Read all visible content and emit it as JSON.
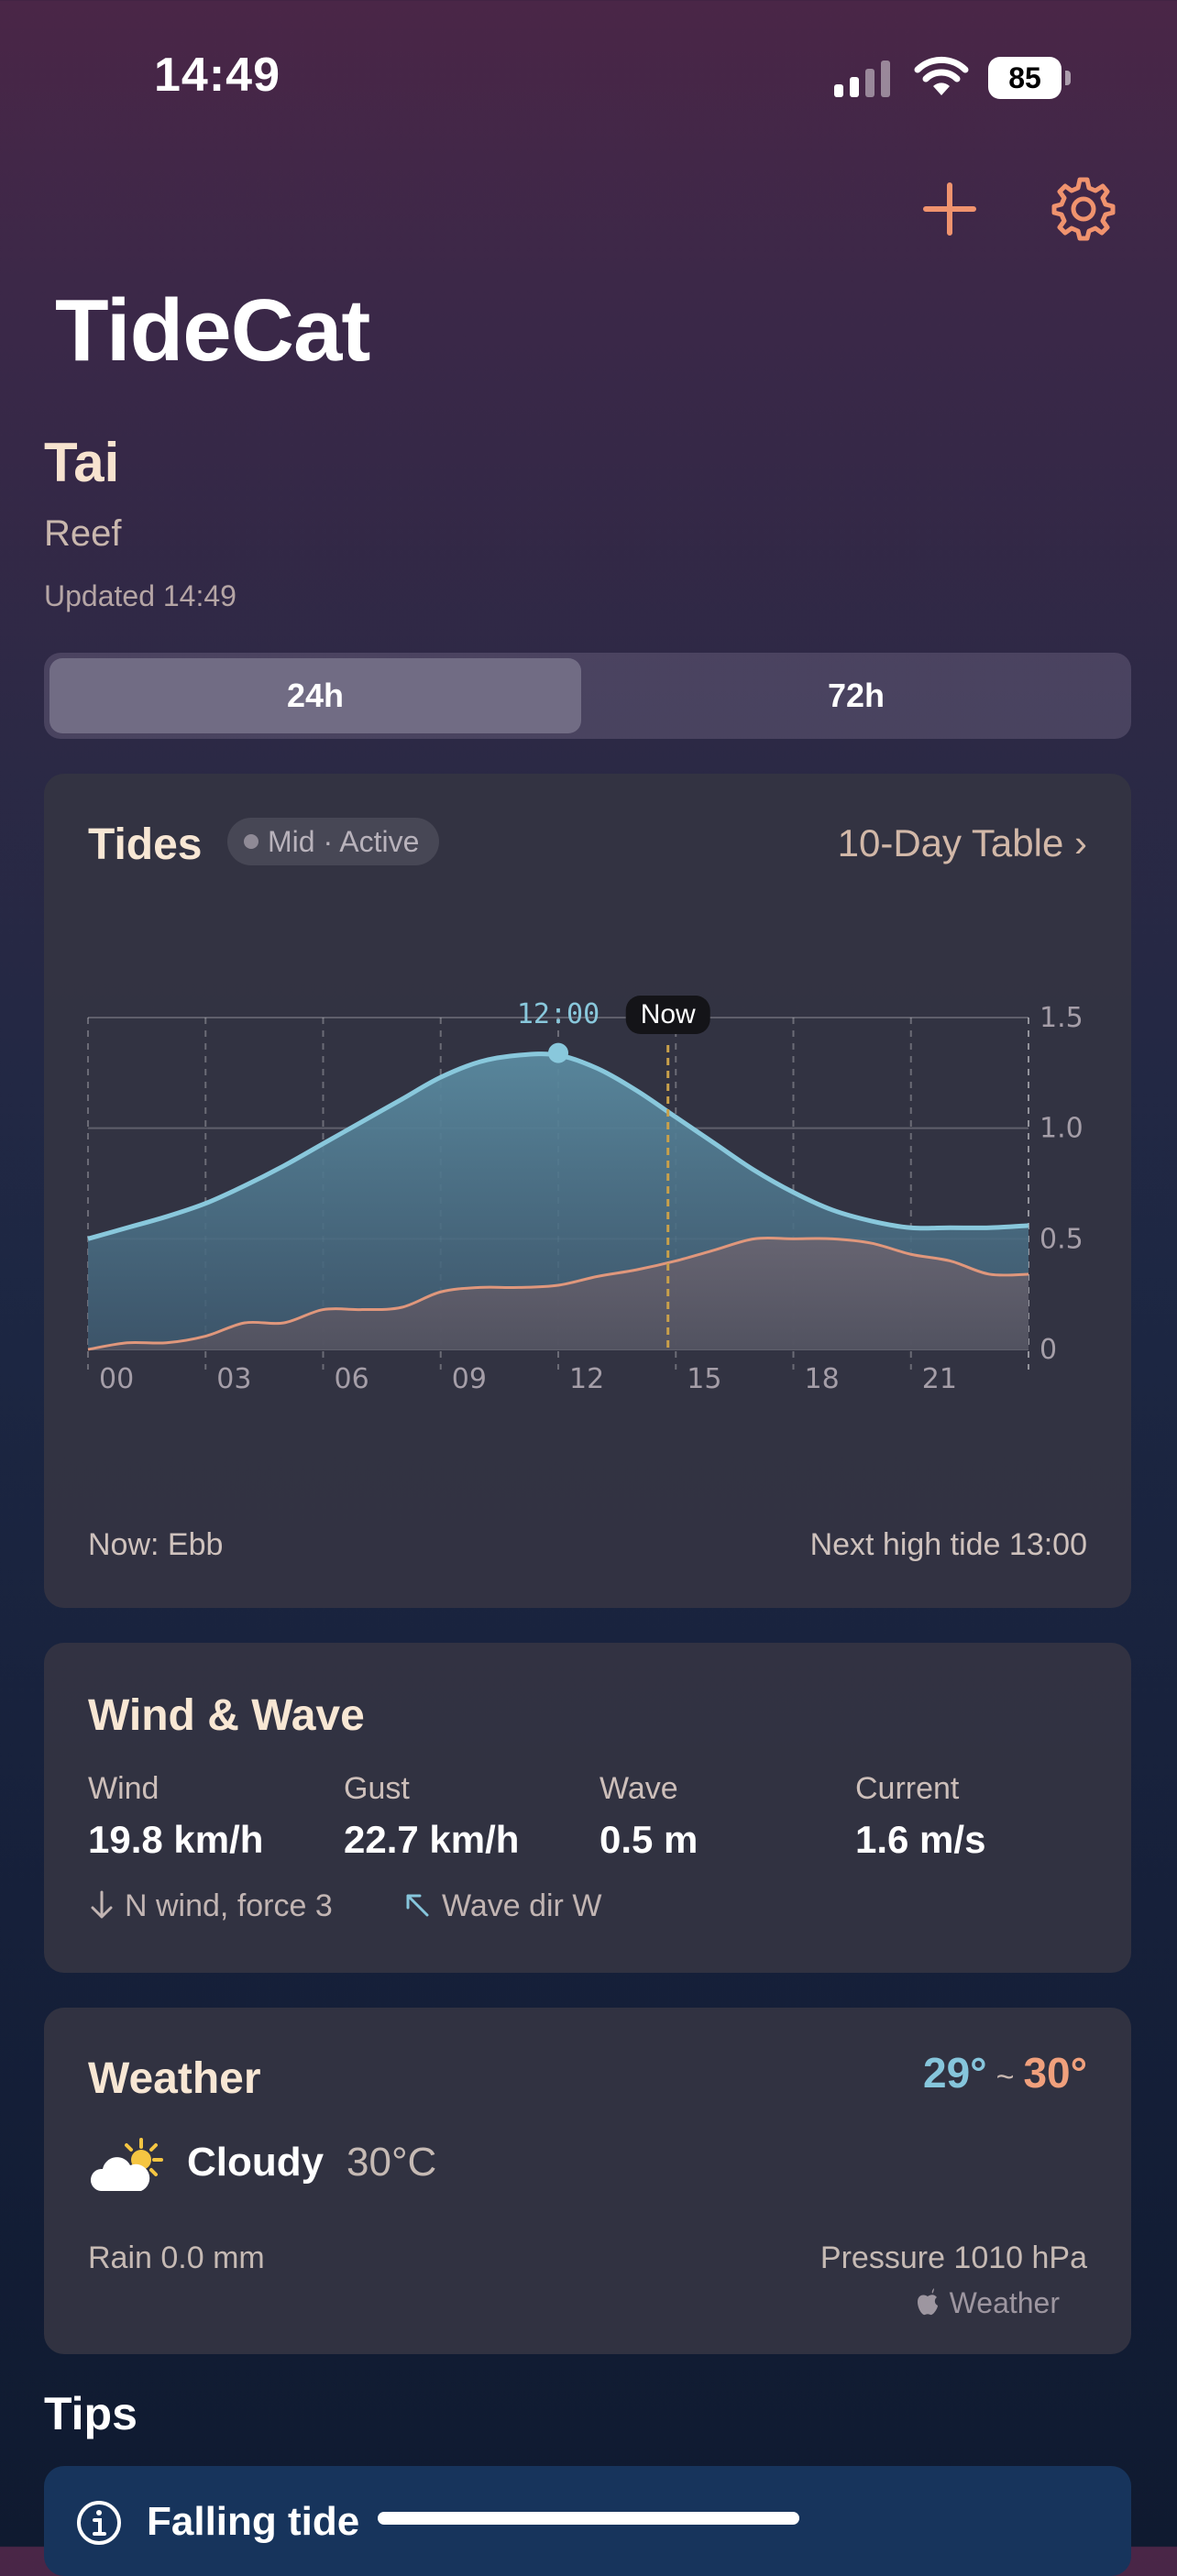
{
  "status_bar": {
    "time": "14:49",
    "battery": "85"
  },
  "app": {
    "title": "TideCat"
  },
  "location": {
    "name": "Tai",
    "type": "Reef",
    "updated": "Updated 14:49"
  },
  "range_selector": {
    "options": [
      "24h",
      "72h"
    ],
    "selected": "24h"
  },
  "tides_card": {
    "title": "Tides",
    "badge": "Mid · Active",
    "table_link": "10-Day Table ›",
    "now_state": "Now: Ebb",
    "next_high": "Next high tide 13:00",
    "now_label": "Now",
    "peak_label": "12:00"
  },
  "chart_data": {
    "type": "area",
    "x_unit": "hour",
    "x_ticks": [
      "00",
      "03",
      "06",
      "09",
      "12",
      "15",
      "18",
      "21"
    ],
    "y_ticks": [
      "0",
      "0.5",
      "1.0",
      "1.5"
    ],
    "ylim": [
      0,
      1.5
    ],
    "xlim": [
      0,
      24
    ],
    "grid": true,
    "now_hour": 14.8,
    "peak": {
      "hour": 12,
      "value": 1.34
    },
    "series": [
      {
        "color": "#89c8dc",
        "x": [
          0,
          1,
          2,
          3,
          4,
          5,
          6,
          7,
          8,
          9,
          10,
          11,
          12,
          13,
          14,
          15,
          16,
          17,
          18,
          19,
          20,
          21,
          22,
          23,
          24
        ],
        "values": [
          0.5,
          0.55,
          0.6,
          0.66,
          0.74,
          0.83,
          0.93,
          1.03,
          1.13,
          1.23,
          1.3,
          1.33,
          1.33,
          1.27,
          1.17,
          1.05,
          0.93,
          0.81,
          0.71,
          0.63,
          0.58,
          0.55,
          0.55,
          0.55,
          0.56
        ]
      },
      {
        "color": "#e0977c",
        "x": [
          0,
          1,
          2,
          3,
          4,
          5,
          6,
          7,
          8,
          9,
          10,
          11,
          12,
          13,
          14,
          15,
          16,
          17,
          18,
          19,
          20,
          21,
          22,
          23,
          24
        ],
        "values": [
          0.0,
          0.03,
          0.03,
          0.06,
          0.12,
          0.12,
          0.18,
          0.18,
          0.19,
          0.26,
          0.28,
          0.28,
          0.29,
          0.33,
          0.36,
          0.4,
          0.45,
          0.5,
          0.5,
          0.5,
          0.48,
          0.43,
          0.4,
          0.34,
          0.34
        ]
      }
    ]
  },
  "wind_card": {
    "title": "Wind & Wave",
    "stats": [
      {
        "label": "Wind",
        "value": "19.8 km/h"
      },
      {
        "label": "Gust",
        "value": "22.7 km/h"
      },
      {
        "label": "Wave",
        "value": "0.5 m"
      },
      {
        "label": "Current",
        "value": "1.6 m/s"
      }
    ],
    "wind_note": "N wind, force 3",
    "wave_note": "Wave dir W"
  },
  "weather_card": {
    "title": "Weather",
    "temp_low": "29°",
    "temp_sep": "~",
    "temp_high": "30°",
    "condition": "Cloudy",
    "temp": "30°C",
    "rain": "Rain 0.0 mm",
    "pressure": "Pressure 1010 hPa",
    "source": "Weather"
  },
  "tips": {
    "title": "Tips",
    "first": "Falling tide"
  },
  "icons": {
    "add": "plus-icon",
    "settings": "gear-icon",
    "weather": "partly-cloudy-icon",
    "info": "info-icon",
    "wind_arrow": "arrow-down-icon",
    "wave_arrow": "arrow-up-left-icon"
  },
  "colors": {
    "accent": "#f0936e",
    "tide_line": "#89c8dc",
    "current_line": "#e0977c",
    "now_marker": "#c9a04a",
    "tip_bg": "#17345c"
  }
}
